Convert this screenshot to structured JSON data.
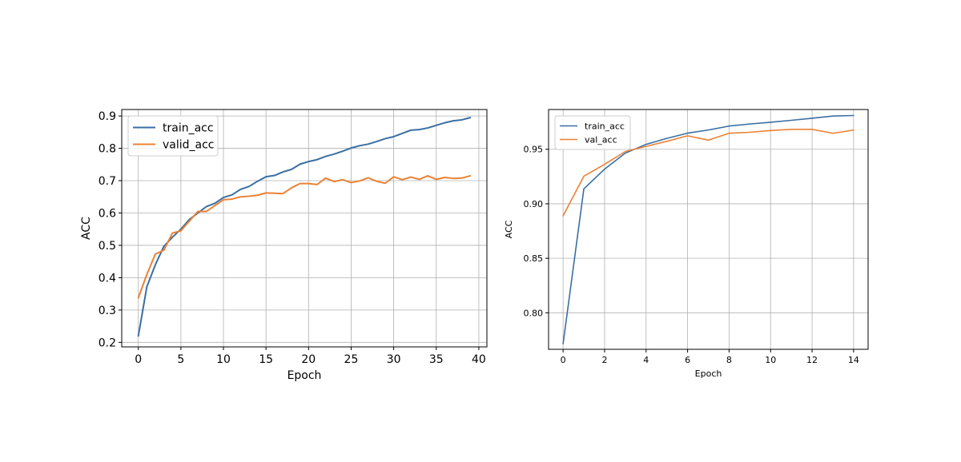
{
  "chart_data": [
    {
      "type": "line",
      "title": "",
      "xlabel": "Epoch",
      "ylabel": "ACC",
      "xlim": [
        -1.95,
        40.95
      ],
      "ylim": [
        0.186,
        0.92
      ],
      "xticks": [
        0,
        5,
        10,
        15,
        20,
        25,
        30,
        35,
        40
      ],
      "yticks": [
        0.2,
        0.3,
        0.4,
        0.5,
        0.6,
        0.7,
        0.8,
        0.9
      ],
      "grid": true,
      "legend_position": "upper-left",
      "x": [
        0,
        1,
        2,
        3,
        4,
        5,
        6,
        7,
        8,
        9,
        10,
        11,
        12,
        13,
        14,
        15,
        16,
        17,
        18,
        19,
        20,
        21,
        22,
        23,
        24,
        25,
        26,
        27,
        28,
        29,
        30,
        31,
        32,
        33,
        34,
        35,
        36,
        37,
        38,
        39
      ],
      "series": [
        {
          "name": "train_acc",
          "color": "#3a6fa3",
          "values": [
            0.22,
            0.372,
            0.44,
            0.497,
            0.525,
            0.55,
            0.58,
            0.6,
            0.62,
            0.63,
            0.648,
            0.656,
            0.673,
            0.682,
            0.698,
            0.712,
            0.716,
            0.727,
            0.735,
            0.751,
            0.759,
            0.765,
            0.775,
            0.782,
            0.791,
            0.801,
            0.808,
            0.813,
            0.821,
            0.83,
            0.836,
            0.846,
            0.856,
            0.858,
            0.863,
            0.871,
            0.879,
            0.885,
            0.888,
            0.895
          ]
        },
        {
          "name": "valid_acc",
          "color": "#ec8134",
          "values": [
            0.338,
            0.41,
            0.473,
            0.485,
            0.538,
            0.545,
            0.575,
            0.605,
            0.605,
            0.623,
            0.641,
            0.643,
            0.65,
            0.652,
            0.655,
            0.662,
            0.661,
            0.66,
            0.678,
            0.691,
            0.691,
            0.688,
            0.708,
            0.697,
            0.703,
            0.694,
            0.699,
            0.709,
            0.698,
            0.692,
            0.712,
            0.703,
            0.711,
            0.704,
            0.715,
            0.704,
            0.71,
            0.707,
            0.708,
            0.715
          ]
        }
      ]
    },
    {
      "type": "line",
      "title": "",
      "xlabel": "Epoch",
      "ylabel": "ACC",
      "xlim": [
        -0.7,
        14.7
      ],
      "ylim": [
        0.7665,
        0.9865
      ],
      "xticks": [
        0,
        2,
        4,
        6,
        8,
        10,
        12,
        14
      ],
      "yticks": [
        0.8,
        0.85,
        0.9,
        0.95
      ],
      "grid": true,
      "legend_position": "upper-left",
      "x": [
        0,
        1,
        2,
        3,
        4,
        5,
        6,
        7,
        8,
        9,
        10,
        11,
        12,
        13,
        14
      ],
      "series": [
        {
          "name": "train_acc",
          "color": "#3a6fa3",
          "values": [
            0.7716,
            0.9137,
            0.9318,
            0.9465,
            0.9545,
            0.96,
            0.9648,
            0.9677,
            0.9713,
            0.9732,
            0.9748,
            0.9766,
            0.9785,
            0.9805,
            0.981
          ]
        },
        {
          "name": "val_acc",
          "color": "#ec8134",
          "values": [
            0.889,
            0.9253,
            0.9362,
            0.948,
            0.9527,
            0.9573,
            0.9624,
            0.9584,
            0.9647,
            0.9656,
            0.9672,
            0.9683,
            0.9683,
            0.9647,
            0.9676
          ]
        }
      ]
    }
  ]
}
